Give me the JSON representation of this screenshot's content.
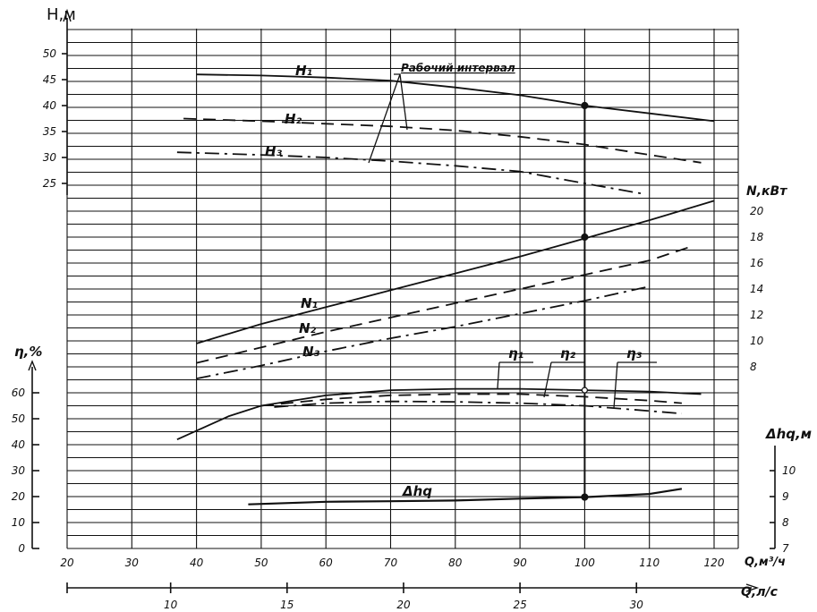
{
  "chart_data": {
    "type": "line",
    "title": "",
    "grid": true,
    "x": {
      "label": "Q,м³/ч",
      "range": [
        20,
        120
      ],
      "ticks": [
        20,
        30,
        40,
        50,
        60,
        70,
        80,
        90,
        100,
        110,
        120
      ]
    },
    "x2": {
      "label": "Q,л/с",
      "ticks": [
        10,
        15,
        20,
        25,
        30
      ]
    },
    "axes": {
      "H": {
        "label": "Н,м",
        "ticks": [
          25,
          30,
          35,
          40,
          45,
          50
        ]
      },
      "N": {
        "label": "N,кВт",
        "ticks": [
          8,
          10,
          12,
          14,
          16,
          18,
          20
        ]
      },
      "eta": {
        "label": "η,%",
        "ticks": [
          0,
          10,
          20,
          30,
          40,
          50,
          60
        ]
      },
      "dh": {
        "label": "Δhq,м",
        "ticks": [
          7,
          8,
          9,
          10
        ]
      }
    },
    "annotation": "Рабочий интервал",
    "series": [
      {
        "name": "H1",
        "label": "H₁",
        "axis": "H",
        "style": "solid",
        "points": [
          [
            40,
            46
          ],
          [
            50,
            45.8
          ],
          [
            60,
            45.4
          ],
          [
            70,
            44.8
          ],
          [
            80,
            43.5
          ],
          [
            90,
            42
          ],
          [
            100,
            40
          ],
          [
            110,
            38.5
          ],
          [
            120,
            37
          ]
        ]
      },
      {
        "name": "H2",
        "label": "H₂",
        "axis": "H",
        "style": "dash",
        "points": [
          [
            38,
            37.5
          ],
          [
            50,
            37
          ],
          [
            60,
            36.5
          ],
          [
            70,
            36
          ],
          [
            80,
            35.2
          ],
          [
            90,
            34
          ],
          [
            100,
            32.5
          ],
          [
            110,
            30.5
          ],
          [
            118,
            29
          ]
        ]
      },
      {
        "name": "H3",
        "label": "H₃",
        "axis": "H",
        "style": "dashdot",
        "points": [
          [
            37,
            31
          ],
          [
            50,
            30.5
          ],
          [
            60,
            30
          ],
          [
            70,
            29.3
          ],
          [
            80,
            28.4
          ],
          [
            90,
            27.3
          ],
          [
            100,
            25
          ],
          [
            109,
            23
          ]
        ]
      },
      {
        "name": "N1",
        "label": "N₁",
        "axis": "N",
        "style": "solid",
        "points": [
          [
            40,
            9.8
          ],
          [
            50,
            11.3
          ],
          [
            60,
            12.6
          ],
          [
            70,
            13.9
          ],
          [
            80,
            15.2
          ],
          [
            90,
            16.5
          ],
          [
            100,
            17.9
          ],
          [
            110,
            19.3
          ],
          [
            120,
            20.8
          ]
        ]
      },
      {
        "name": "N2",
        "label": "N₂",
        "axis": "N",
        "style": "dash",
        "points": [
          [
            40,
            8.3
          ],
          [
            50,
            9.5
          ],
          [
            60,
            10.7
          ],
          [
            70,
            11.8
          ],
          [
            80,
            12.9
          ],
          [
            90,
            14
          ],
          [
            100,
            15.1
          ],
          [
            110,
            16.2
          ],
          [
            116,
            17.2
          ]
        ]
      },
      {
        "name": "N3",
        "label": "N₃",
        "axis": "N",
        "style": "dashdot",
        "points": [
          [
            40,
            7.1
          ],
          [
            50,
            8.1
          ],
          [
            60,
            9.2
          ],
          [
            70,
            10.2
          ],
          [
            80,
            11.1
          ],
          [
            90,
            12.1
          ],
          [
            100,
            13.1
          ],
          [
            110,
            14.2
          ]
        ]
      },
      {
        "name": "eta1",
        "label": "η₁",
        "axis": "eta",
        "style": "solid",
        "points": [
          [
            37,
            42
          ],
          [
            45,
            51
          ],
          [
            50,
            55
          ],
          [
            60,
            59
          ],
          [
            70,
            61
          ],
          [
            80,
            61.5
          ],
          [
            90,
            61.5
          ],
          [
            100,
            61
          ],
          [
            110,
            60.5
          ],
          [
            118,
            59.5
          ]
        ]
      },
      {
        "name": "eta2",
        "label": "η₂",
        "axis": "eta",
        "style": "dash",
        "points": [
          [
            50,
            55
          ],
          [
            60,
            57.5
          ],
          [
            70,
            59
          ],
          [
            80,
            59.5
          ],
          [
            90,
            59.5
          ],
          [
            100,
            58.5
          ],
          [
            110,
            57
          ],
          [
            115,
            56
          ]
        ]
      },
      {
        "name": "eta3",
        "label": "η₃",
        "axis": "eta",
        "style": "dashdot",
        "points": [
          [
            52,
            54.5
          ],
          [
            60,
            56
          ],
          [
            70,
            56.7
          ],
          [
            80,
            56.5
          ],
          [
            90,
            56
          ],
          [
            100,
            55
          ],
          [
            110,
            53
          ],
          [
            115,
            52
          ]
        ]
      },
      {
        "name": "dhq",
        "label": "Δhq",
        "axis": "dh",
        "style": "solid",
        "points": [
          [
            48,
            8.7
          ],
          [
            60,
            8.8
          ],
          [
            70,
            8.82
          ],
          [
            80,
            8.85
          ],
          [
            90,
            8.92
          ],
          [
            100,
            8.98
          ],
          [
            110,
            9.1
          ],
          [
            115,
            9.3
          ]
        ]
      }
    ]
  }
}
